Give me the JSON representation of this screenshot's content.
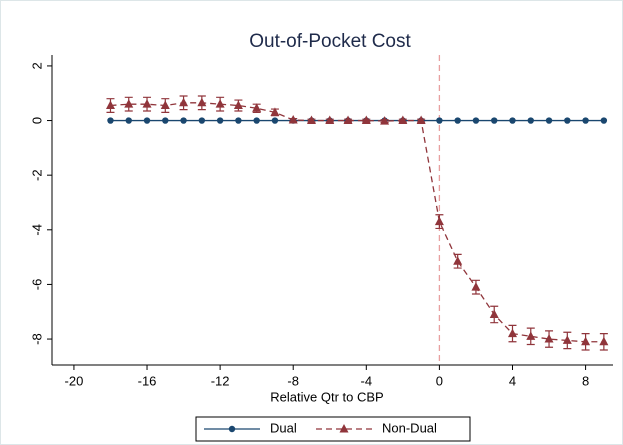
{
  "chart_data": {
    "type": "line",
    "title": "Out-of-Pocket Cost",
    "x_label": "Relative Qtr to CBP",
    "x": [
      -18,
      -17,
      -16,
      -15,
      -14,
      -13,
      -12,
      -11,
      -10,
      -9,
      -8,
      -7,
      -6,
      -5,
      -4,
      -3,
      -2,
      -1,
      0,
      1,
      2,
      3,
      4,
      5,
      6,
      7,
      8,
      9
    ],
    "series": [
      {
        "name": "Dual",
        "color": "#1a476f",
        "marker": "circle",
        "dash": false,
        "values": [
          0,
          0,
          0,
          0,
          0,
          0,
          0,
          0,
          0,
          0,
          0,
          0,
          0,
          0,
          0,
          0,
          0,
          0,
          0,
          0,
          0,
          0,
          0,
          0,
          0,
          0,
          0,
          0
        ]
      },
      {
        "name": "Non-Dual",
        "color": "#90353b",
        "marker": "triangle",
        "dash": true,
        "values": [
          0.55,
          0.6,
          0.6,
          0.55,
          0.65,
          0.65,
          0.6,
          0.55,
          0.45,
          0.3,
          0.02,
          0,
          0,
          0,
          0,
          -0.02,
          0,
          0,
          -3.7,
          -5.15,
          -6.1,
          -7.1,
          -7.8,
          -7.9,
          -8.0,
          -8.05,
          -8.1,
          -8.1
        ],
        "errors": [
          0.25,
          0.25,
          0.25,
          0.25,
          0.25,
          0.25,
          0.25,
          0.2,
          0.15,
          0.12,
          0.05,
          0.05,
          0.05,
          0.05,
          0.05,
          0.05,
          0.05,
          0.05,
          0.25,
          0.25,
          0.25,
          0.3,
          0.3,
          0.3,
          0.3,
          0.3,
          0.3,
          0.3
        ]
      }
    ],
    "xlim": [
      -21.2,
      9.5
    ],
    "xticks": [
      -20,
      -16,
      -12,
      -8,
      -4,
      0,
      4,
      8
    ],
    "ylim": [
      -8.95,
      2.4
    ],
    "yticks": [
      2,
      0,
      -2,
      -4,
      -6,
      -8
    ],
    "vline": 0,
    "vline_color": "#e8a0a0",
    "legend": "bottom"
  }
}
